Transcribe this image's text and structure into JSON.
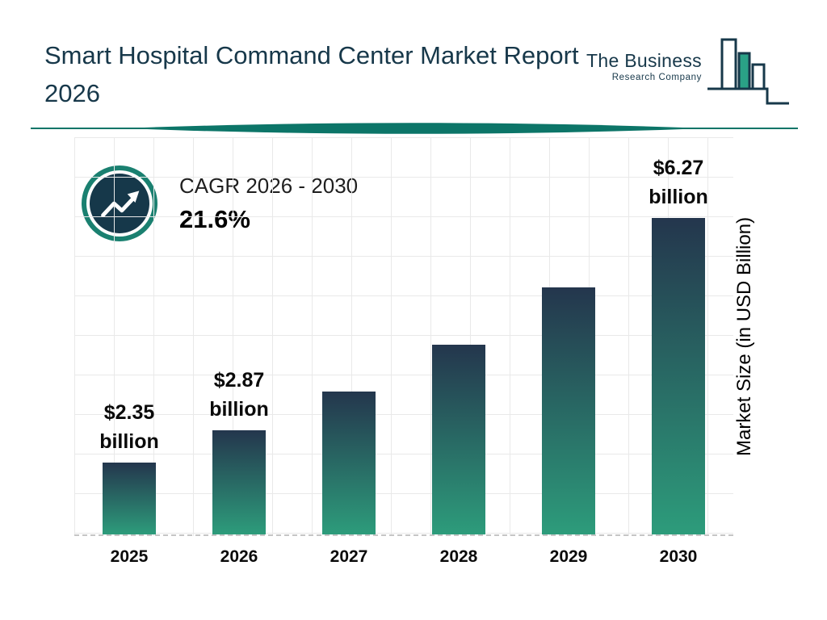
{
  "page": {
    "title": "Smart Hospital Command Center Market Report 2026"
  },
  "logo": {
    "line1": "The Business",
    "line2": "Research Company"
  },
  "cagr": {
    "label": "CAGR 2026 - 2030",
    "value": "21.6%"
  },
  "chart_data": {
    "type": "bar",
    "title": "",
    "categories": [
      "2025",
      "2026",
      "2027",
      "2028",
      "2029",
      "2030"
    ],
    "values": [
      2.35,
      2.87,
      3.49,
      4.24,
      5.16,
      6.27
    ],
    "value_labels": [
      {
        "amount": "$2.35",
        "unit": "billion"
      },
      {
        "amount": "$2.87",
        "unit": "billion"
      },
      null,
      null,
      null,
      {
        "amount": "$6.27",
        "unit": "billion"
      }
    ],
    "xlabel": "",
    "ylabel": "Market Size (in USD Billion)",
    "ylim": [
      1.2,
      6.27
    ],
    "grid": true,
    "legend": false,
    "bar_gradient": [
      "#24364d",
      "#2d9c7b"
    ]
  },
  "colors": {
    "title_navy": "#17384a",
    "divider_teal": "#0c7568",
    "accent_green": "#2aa186",
    "icon_ring_teal": "#1a8070",
    "icon_circle_navy": "#16384a",
    "grid_line": "#e9e9e9",
    "dashed_baseline": "#c6c6c6"
  }
}
